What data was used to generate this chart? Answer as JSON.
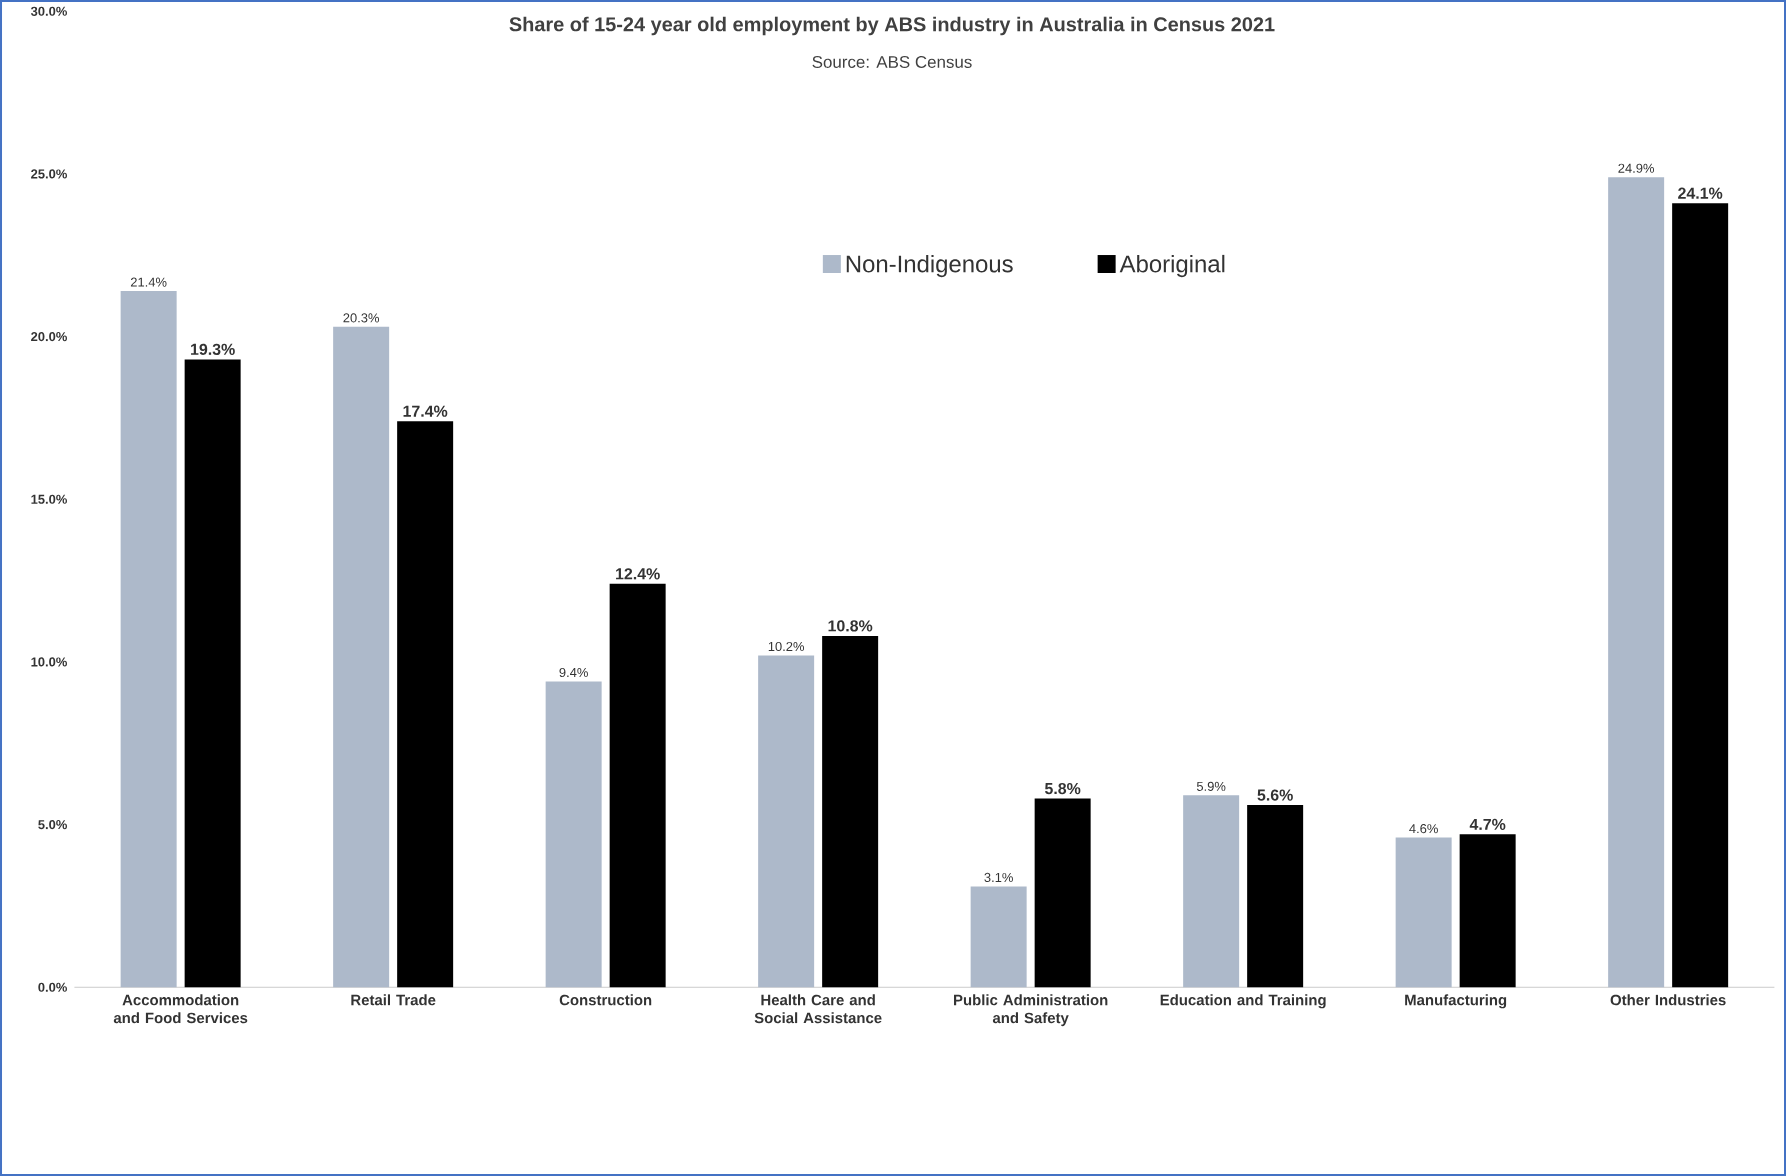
{
  "chart_data": {
    "type": "bar",
    "title": "Share of 15-24 year old employment by ABS industry in Australia in Census 2021",
    "subtitle": "Source: ABS Census",
    "categories": [
      "Accommodation and Food Services",
      "Retail Trade",
      "Construction",
      "Health Care and Social Assistance",
      "Public Administration and Safety",
      "Education and Training",
      "Manufacturing",
      "Other Industries"
    ],
    "series": [
      {
        "name": "Non-Indigenous",
        "color": "#adb9ca",
        "values": [
          21.4,
          20.3,
          9.4,
          10.2,
          3.1,
          5.9,
          4.6,
          24.9
        ],
        "value_labels": [
          "21.4%",
          "20.3%",
          "9.4%",
          "10.2%",
          "3.1%",
          "5.9%",
          "4.6%",
          "24.9%"
        ]
      },
      {
        "name": "Aboriginal",
        "color": "#000000",
        "values": [
          19.3,
          17.4,
          12.4,
          10.8,
          5.8,
          5.6,
          4.7,
          24.1
        ],
        "value_labels": [
          "19.3%",
          "17.4%",
          "12.4%",
          "10.8%",
          "5.8%",
          "5.6%",
          "4.7%",
          "24.1%"
        ]
      }
    ],
    "ylim": [
      0,
      30
    ],
    "yticks": [
      {
        "value": 0,
        "label": "0.0%"
      },
      {
        "value": 5,
        "label": "5.0%"
      },
      {
        "value": 10,
        "label": "10.0%"
      },
      {
        "value": 15,
        "label": "15.0%"
      },
      {
        "value": 20,
        "label": "20.0%"
      },
      {
        "value": 25,
        "label": "25.0%"
      },
      {
        "value": 30,
        "label": "30.0%"
      }
    ],
    "legend": "top"
  }
}
